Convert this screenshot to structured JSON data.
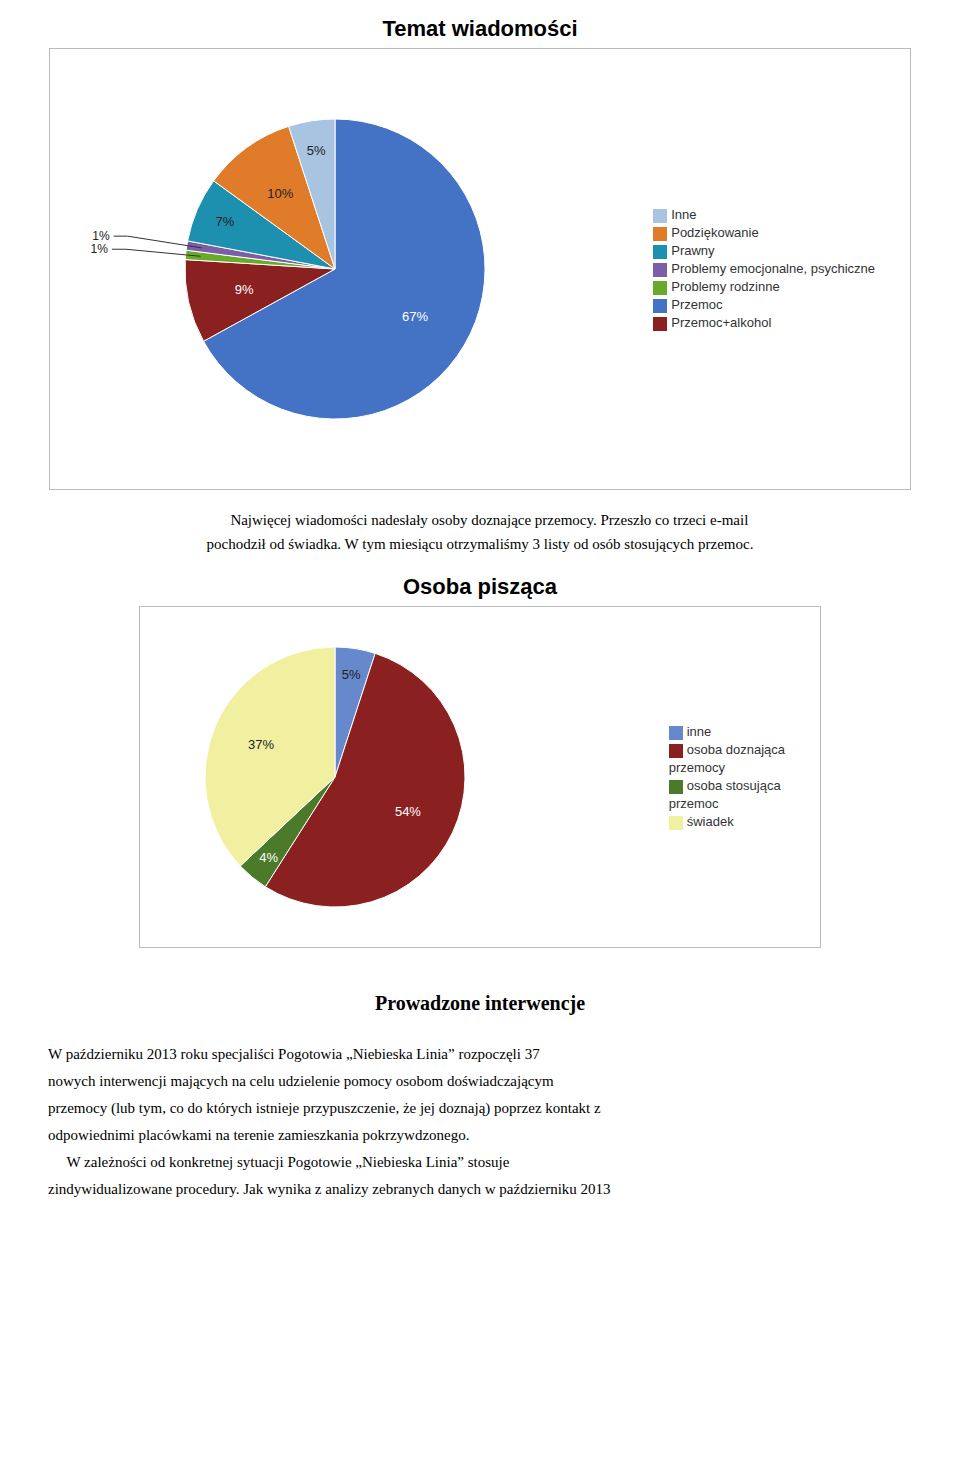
{
  "chart_data": [
    {
      "type": "pie",
      "title": "Temat wiadomości",
      "categories": [
        "Przemoc",
        "Przemoc+alkohol",
        "Problemy rodzinne",
        "Problemy emocjonalne, psychiczne",
        "Prawny",
        "Podziękowanie",
        "Inne"
      ],
      "values": [
        67,
        9,
        1,
        1,
        7,
        10,
        5
      ],
      "value_labels": [
        "67%",
        "9%",
        "1%",
        "1%",
        "7%",
        "10%",
        "5%"
      ],
      "colors": [
        "#4472C4",
        "#8B2020",
        "#6AAA2A",
        "#7B5EA7",
        "#1D8FAF",
        "#E07B2A",
        "#A8C4E0"
      ],
      "data_labels": true,
      "legend": "right",
      "annotations": [
        "     Najwięcej wiadomości nadesłały osoby doznające przemocy. Przeszło co trzeci e-mail",
        "pochodził od świadka. W tym miesiącu otrzymaliśmy 3 listy od osób stosujących przemoc."
      ]
    },
    {
      "type": "pie",
      "title": "Osoba pisząca",
      "categories": [
        "inne",
        "osoba doznająca\nprzemocy",
        "osoba stosująca\nprzemoc",
        "świadek"
      ],
      "values": [
        5,
        54,
        4,
        37
      ],
      "value_labels": [
        "5%",
        "54%",
        "4%",
        "37%"
      ],
      "colors": [
        "#6688CC",
        "#8B2020",
        "#4B7A2A",
        "#F0F0A0"
      ],
      "data_labels": true,
      "legend": "right",
      "annotations": [
        "Prowadzone interwencje",
        "W październiku 2013 roku specjaliści Pogotowia „Niebieska Linia” rozpoczęli 37",
        "nowych interwencji mających na celu udzielenie pomocy osobom doświadczającym",
        "przemocy (lub tym, co do których istnieje przypuszczenie, że jej doznają) poprzez kontakt z",
        "odpowiednimi placówkami na terenie zamieszkania pokrzywdzonego.",
        "     W zależności od konkretnej sytuacji Pogotowie „Niebieska Linia” stosuje",
        "zindywidualizowane procedury. Jak wynika z analizy zebranych danych w październiku 2013"
      ]
    }
  ]
}
